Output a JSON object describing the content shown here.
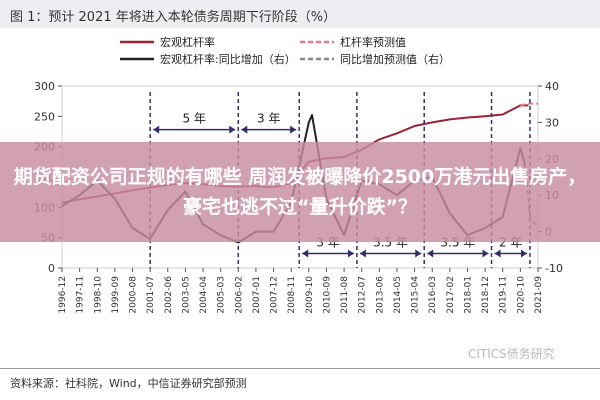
{
  "title": "图 1：预计 2021 年将进入本轮债务周期下行阶段（%）",
  "headline": "期货配资公司正规的有哪些 周润发被曝降价2500万港元出售房产，豪宅也逃不过“量升价跌”？",
  "source": "资料来源：社科院，Wind，中信证券研究部预测",
  "watermark": "CITICS债务研究",
  "chart_data": {
    "type": "line",
    "legend": [
      {
        "name": "宏观杠杆率",
        "color": "#9b2335",
        "style": "solid"
      },
      {
        "name": "杠杆率预测值",
        "color": "#e07a8a",
        "style": "dashed"
      },
      {
        "name": "宏观杠杆率:同比增加（右）",
        "color": "#222222",
        "style": "solid"
      },
      {
        "name": "同比增加预测值（右）",
        "color": "#888888",
        "style": "dashed"
      }
    ],
    "left_axis": {
      "ylim": [
        0,
        300
      ],
      "ticks": [
        "0",
        "50",
        "100",
        "150",
        "200",
        "250",
        "300"
      ]
    },
    "right_axis": {
      "ylim": [
        -10,
        40
      ],
      "ticks": [
        "-10",
        "0",
        "10",
        "20",
        "30",
        "40"
      ]
    },
    "x_range": [
      "1996-12",
      "2021-09"
    ],
    "x_ticks": [
      "1996-12",
      "1997-11",
      "1998-10",
      "1999-09",
      "2000-08",
      "2001-07",
      "2002-06",
      "2003-05",
      "2004-04",
      "2005-03",
      "2006-02",
      "2007-01",
      "2007-12",
      "2008-11",
      "2009-10",
      "2010-09",
      "2011-08",
      "2012-07",
      "2013-06",
      "2014-05",
      "2015-04",
      "2016-03",
      "2017-02",
      "2018-01",
      "2018-12",
      "2019-11",
      "2020-10",
      "2021-09"
    ],
    "series": [
      {
        "name": "宏观杠杆率",
        "axis": "left",
        "points": [
          [
            "1996-12",
            108
          ],
          [
            "1998-10",
            118
          ],
          [
            "2000-08",
            128
          ],
          [
            "2002-06",
            137
          ],
          [
            "2003-05",
            140
          ],
          [
            "2004-04",
            138
          ],
          [
            "2005-03",
            135
          ],
          [
            "2006-02",
            134
          ],
          [
            "2007-01",
            135
          ],
          [
            "2007-12",
            133
          ],
          [
            "2008-11",
            140
          ],
          [
            "2009-10",
            175
          ],
          [
            "2010-09",
            181
          ],
          [
            "2011-08",
            183
          ],
          [
            "2012-07",
            195
          ],
          [
            "2013-06",
            212
          ],
          [
            "2014-05",
            222
          ],
          [
            "2015-04",
            234
          ],
          [
            "2016-03",
            240
          ],
          [
            "2017-02",
            245
          ],
          [
            "2018-01",
            248
          ],
          [
            "2018-12",
            250
          ],
          [
            "2019-11",
            253
          ],
          [
            "2020-10",
            268
          ],
          [
            "2021-03",
            268
          ]
        ]
      },
      {
        "name": "杠杆率预测值",
        "axis": "left",
        "points": [
          [
            "2020-10",
            268
          ],
          [
            "2021-03",
            271
          ],
          [
            "2021-09",
            271
          ]
        ]
      },
      {
        "name": "宏观杠杆率:同比增加（右）",
        "axis": "right",
        "points": [
          [
            "1996-12",
            7
          ],
          [
            "1997-11",
            10
          ],
          [
            "1998-10",
            14
          ],
          [
            "1999-09",
            9
          ],
          [
            "2000-08",
            1
          ],
          [
            "2001-07",
            -2
          ],
          [
            "2002-06",
            6
          ],
          [
            "2003-05",
            11
          ],
          [
            "2004-04",
            2
          ],
          [
            "2005-03",
            -1
          ],
          [
            "2006-02",
            -3
          ],
          [
            "2007-01",
            0
          ],
          [
            "2007-12",
            0
          ],
          [
            "2008-11",
            8
          ],
          [
            "2009-10",
            30
          ],
          [
            "2009-12",
            32
          ],
          [
            "2010-09",
            9
          ],
          [
            "2011-08",
            -1
          ],
          [
            "2012-07",
            14
          ],
          [
            "2013-06",
            13
          ],
          [
            "2014-05",
            10
          ],
          [
            "2015-04",
            14
          ],
          [
            "2016-03",
            15
          ],
          [
            "2017-02",
            5
          ],
          [
            "2018-01",
            -1
          ],
          [
            "2018-12",
            1
          ],
          [
            "2019-11",
            4
          ],
          [
            "2020-10",
            23
          ],
          [
            "2021-01",
            18
          ]
        ]
      },
      {
        "name": "同比增加预测值（右）",
        "axis": "right",
        "points": [
          [
            "2021-01",
            18
          ],
          [
            "2021-04",
            4
          ],
          [
            "2021-09",
            1
          ]
        ]
      }
    ],
    "annotations": [
      {
        "text": "5 年",
        "from": "2001-07",
        "to": "2006-02",
        "y_right": 28
      },
      {
        "text": "3 年",
        "from": "2006-02",
        "to": "2009-04",
        "y_right": 28
      },
      {
        "text": "3 年",
        "from": "2009-04",
        "to": "2012-04",
        "y_right": -6
      },
      {
        "text": "3.5 年",
        "from": "2012-04",
        "to": "2015-10",
        "y_right": -6
      },
      {
        "text": "3.5 年",
        "from": "2015-10",
        "to": "2019-04",
        "y_right": -6
      },
      {
        "text": "2 年",
        "from": "2019-04",
        "to": "2021-04",
        "y_right": -6
      }
    ]
  }
}
